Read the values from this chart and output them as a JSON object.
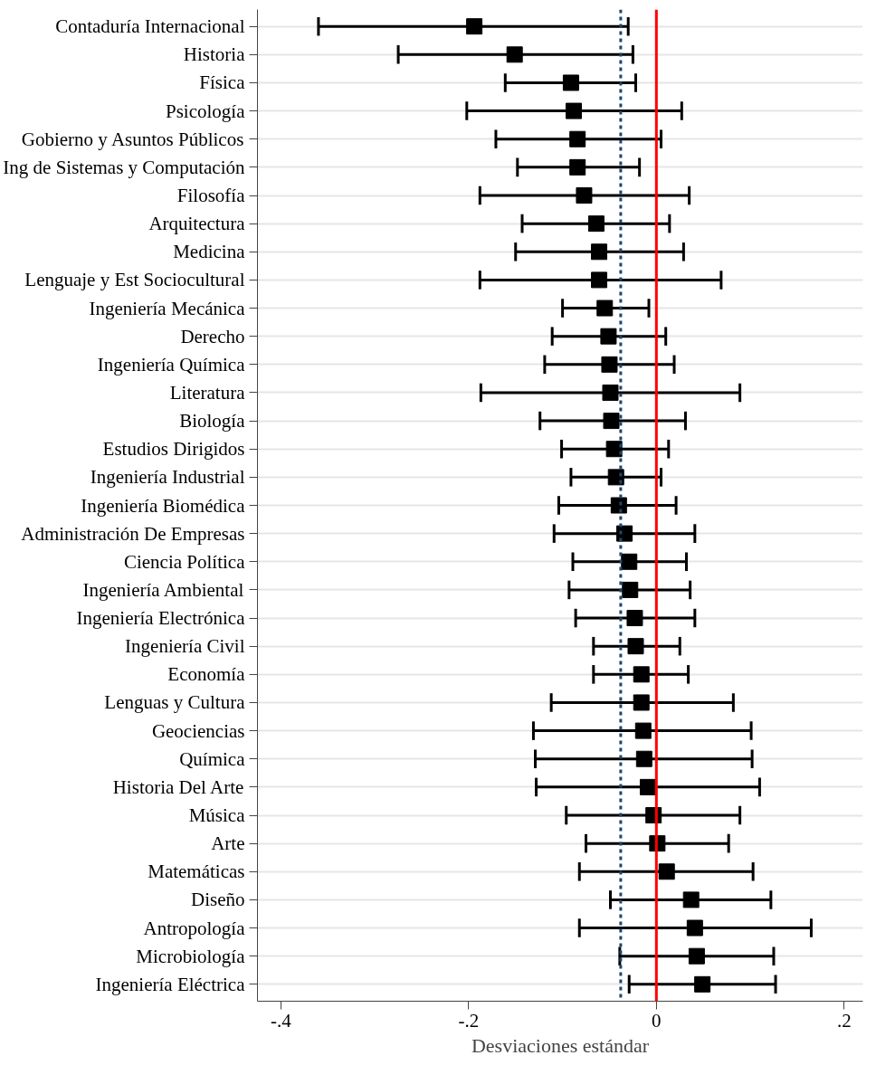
{
  "chart_data": {
    "type": "scatter",
    "orientation": "horizontal",
    "xlabel": "Desviaciones estándar",
    "categories": [
      "Contaduría Internacional",
      "Historia",
      "Física",
      "Psicología",
      "Gobierno y Asuntos Públicos",
      "Ing de Sistemas y Computación",
      "Filosofía",
      "Arquitectura",
      "Medicina",
      "Lenguaje y Est Sociocultural",
      "Ingeniería Mecánica",
      "Derecho",
      "Ingeniería Química",
      "Literatura",
      "Biología",
      "Estudios Dirigidos",
      "Ingeniería Industrial",
      "Ingeniería Biomédica",
      "Administración De Empresas",
      "Ciencia Política",
      "Ingeniería Ambiental",
      "Ingeniería Electrónica",
      "Ingeniería Civil",
      "Economía",
      "Lenguas y Cultura",
      "Geociencias",
      "Química",
      "Historia Del Arte",
      "Música",
      "Arte",
      "Matemáticas",
      "Diseño",
      "Antropología",
      "Microbiología",
      "Ingeniería Eléctrica"
    ],
    "series": [
      {
        "color": "#000000",
        "values": [
          -0.194,
          -0.151,
          -0.091,
          -0.088,
          -0.084,
          -0.084,
          -0.077,
          -0.064,
          -0.061,
          -0.061,
          -0.055,
          -0.051,
          -0.05,
          -0.049,
          -0.048,
          -0.045,
          -0.043,
          -0.04,
          -0.034,
          -0.029,
          -0.028,
          -0.023,
          -0.022,
          -0.016,
          -0.016,
          -0.014,
          -0.013,
          -0.009,
          -0.003,
          0.001,
          0.011,
          0.037,
          0.041,
          0.043,
          0.049
        ],
        "errors": [
          [
            -0.36,
            -0.03
          ],
          [
            -0.275,
            -0.025
          ],
          [
            -0.161,
            -0.022
          ],
          [
            -0.202,
            0.027
          ],
          [
            -0.171,
            0.005
          ],
          [
            -0.148,
            -0.018
          ],
          [
            -0.188,
            0.035
          ],
          [
            -0.143,
            0.014
          ],
          [
            -0.15,
            0.029
          ],
          [
            -0.188,
            0.069
          ],
          [
            -0.1,
            -0.008
          ],
          [
            -0.111,
            0.01
          ],
          [
            -0.119,
            0.019
          ],
          [
            -0.187,
            0.089
          ],
          [
            -0.124,
            0.031
          ],
          [
            -0.101,
            0.013
          ],
          [
            -0.091,
            0.005
          ],
          [
            -0.104,
            0.021
          ],
          [
            -0.109,
            0.041
          ],
          [
            -0.089,
            0.032
          ],
          [
            -0.093,
            0.036
          ],
          [
            -0.086,
            0.041
          ],
          [
            -0.067,
            0.025
          ],
          [
            -0.067,
            0.034
          ],
          [
            -0.112,
            0.082
          ],
          [
            -0.131,
            0.101
          ],
          [
            -0.129,
            0.102
          ],
          [
            -0.128,
            0.11
          ],
          [
            -0.096,
            0.089
          ],
          [
            -0.075,
            0.077
          ],
          [
            -0.082,
            0.103
          ],
          [
            -0.049,
            0.122
          ],
          [
            -0.082,
            0.165
          ],
          [
            -0.039,
            0.125
          ],
          [
            -0.029,
            0.127
          ]
        ]
      }
    ],
    "xlim": [
      -0.425,
      0.22
    ],
    "xticks": [
      {
        "value": -0.4,
        "label": "-.4"
      },
      {
        "value": -0.2,
        "label": "-.2"
      },
      0,
      {
        "value": 0.2,
        "label": ".2"
      }
    ],
    "ref_lines": [
      {
        "axis": "x",
        "value": 0,
        "color": "#ff0000",
        "line_style": "solid"
      },
      {
        "axis": "x",
        "value": -0.038,
        "color": "#1a476f",
        "line_style": "dashed"
      }
    ],
    "marker": "square",
    "grid": "y"
  }
}
